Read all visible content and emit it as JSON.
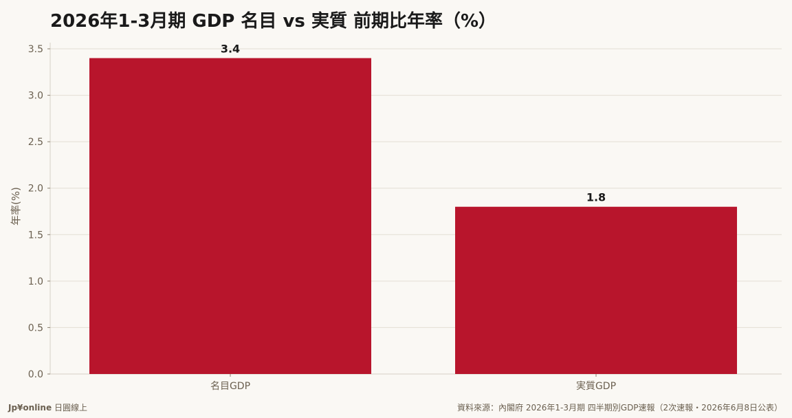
{
  "chart_data": {
    "type": "bar",
    "title": "2026年1-3月期 GDP 名目 vs 実質 前期比年率（%）",
    "ylabel": "年率(%)",
    "xlabel": "",
    "categories": [
      "名目GDP",
      "実質GDP"
    ],
    "values": [
      3.4,
      1.8
    ],
    "value_labels": [
      "3.4",
      "1.8"
    ],
    "ylim": [
      0,
      3.5
    ],
    "yticks": [
      0.0,
      0.5,
      1.0,
      1.5,
      2.0,
      2.5,
      3.0,
      3.5
    ],
    "ytick_labels": [
      "0.0",
      "0.5",
      "1.0",
      "1.5",
      "2.0",
      "2.5",
      "3.0",
      "3.5"
    ],
    "grid": true,
    "bar_color": "#b8152c"
  },
  "footer": {
    "brand": "Jp¥online",
    "brand_suffix": "日圓線上",
    "source": "資料來源：內閣府 2026年1-3月期 四半期別GDP速報（2次速報・2026年6月8日公表）"
  }
}
